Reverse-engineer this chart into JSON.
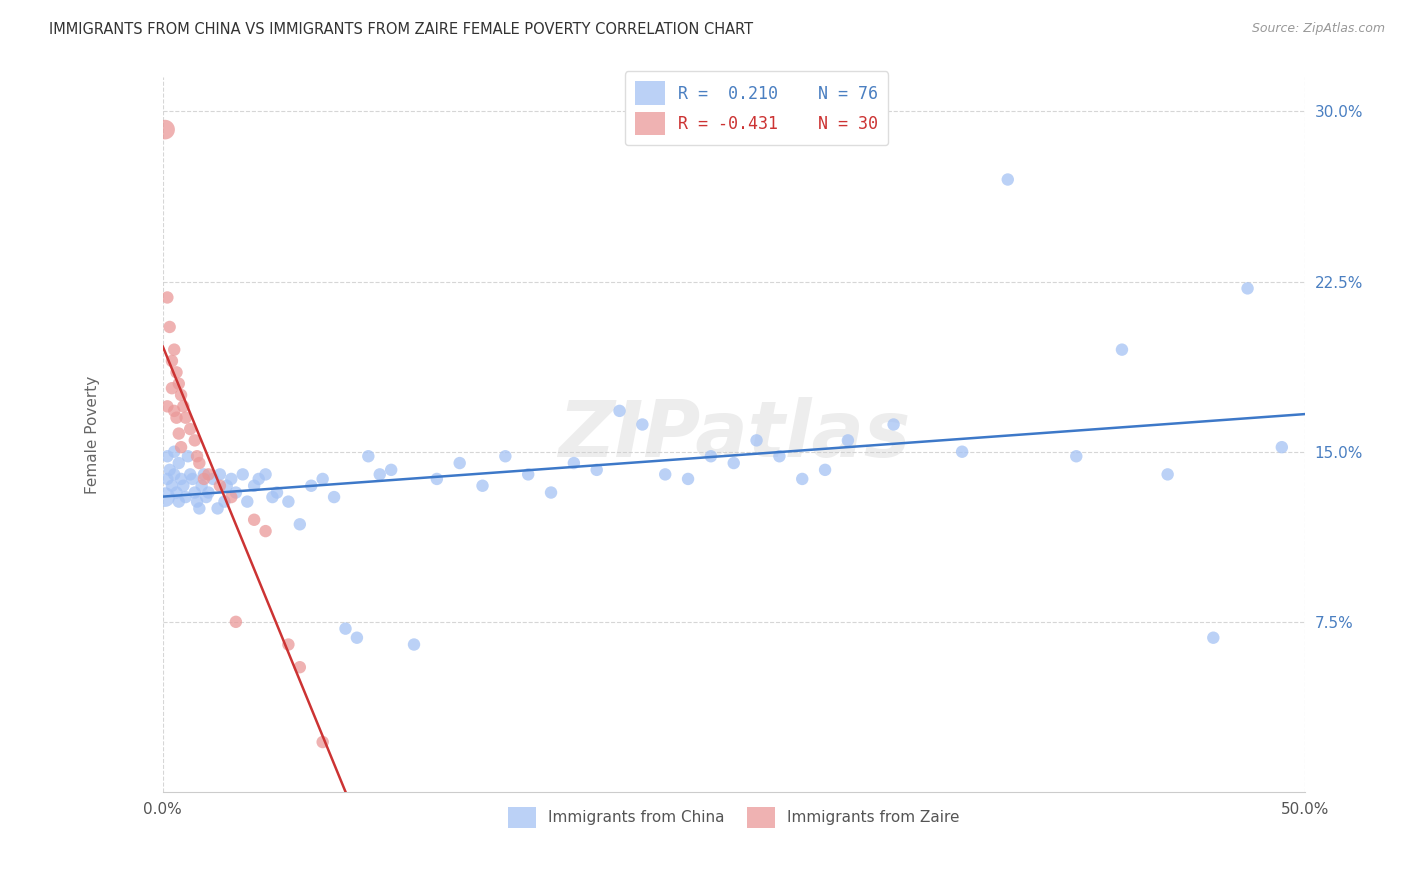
{
  "title": "IMMIGRANTS FROM CHINA VS IMMIGRANTS FROM ZAIRE FEMALE POVERTY CORRELATION CHART",
  "source": "Source: ZipAtlas.com",
  "ylabel": "Female Poverty",
  "xlim": [
    0.0,
    0.5
  ],
  "ylim": [
    0.0,
    0.315
  ],
  "ytick_labels": [
    "7.5%",
    "15.0%",
    "22.5%",
    "30.0%"
  ],
  "ytick_values": [
    0.075,
    0.15,
    0.225,
    0.3
  ],
  "xtick_positions": [
    0.0,
    0.5
  ],
  "xtick_labels": [
    "0.0%",
    "50.0%"
  ],
  "blue_color": "#a4c2f4",
  "pink_color": "#ea9999",
  "trendline_blue": "#3d78c8",
  "trendline_pink": "#cc3333",
  "watermark_text": "ZIPatlas",
  "china_x": [
    0.001,
    0.002,
    0.002,
    0.003,
    0.004,
    0.005,
    0.005,
    0.006,
    0.007,
    0.007,
    0.008,
    0.009,
    0.01,
    0.011,
    0.012,
    0.013,
    0.014,
    0.015,
    0.016,
    0.017,
    0.018,
    0.019,
    0.02,
    0.022,
    0.024,
    0.025,
    0.027,
    0.028,
    0.03,
    0.032,
    0.035,
    0.037,
    0.04,
    0.042,
    0.045,
    0.048,
    0.05,
    0.055,
    0.06,
    0.065,
    0.07,
    0.075,
    0.08,
    0.085,
    0.09,
    0.095,
    0.1,
    0.11,
    0.12,
    0.13,
    0.14,
    0.15,
    0.16,
    0.17,
    0.18,
    0.19,
    0.2,
    0.21,
    0.22,
    0.23,
    0.24,
    0.25,
    0.26,
    0.27,
    0.28,
    0.29,
    0.3,
    0.32,
    0.35,
    0.37,
    0.4,
    0.42,
    0.44,
    0.46,
    0.475,
    0.49
  ],
  "china_y": [
    0.13,
    0.148,
    0.138,
    0.142,
    0.135,
    0.15,
    0.14,
    0.132,
    0.145,
    0.128,
    0.138,
    0.135,
    0.13,
    0.148,
    0.14,
    0.138,
    0.132,
    0.128,
    0.125,
    0.135,
    0.14,
    0.13,
    0.132,
    0.138,
    0.125,
    0.14,
    0.128,
    0.135,
    0.138,
    0.132,
    0.14,
    0.128,
    0.135,
    0.138,
    0.14,
    0.13,
    0.132,
    0.128,
    0.118,
    0.135,
    0.138,
    0.13,
    0.072,
    0.068,
    0.148,
    0.14,
    0.142,
    0.065,
    0.138,
    0.145,
    0.135,
    0.148,
    0.14,
    0.132,
    0.145,
    0.142,
    0.168,
    0.162,
    0.14,
    0.138,
    0.148,
    0.145,
    0.155,
    0.148,
    0.138,
    0.142,
    0.155,
    0.162,
    0.15,
    0.27,
    0.148,
    0.195,
    0.14,
    0.068,
    0.222,
    0.152
  ],
  "china_sizes": [
    200,
    80,
    80,
    80,
    80,
    80,
    80,
    80,
    80,
    80,
    80,
    80,
    80,
    80,
    80,
    80,
    80,
    80,
    80,
    80,
    80,
    80,
    80,
    80,
    80,
    80,
    80,
    80,
    80,
    80,
    80,
    80,
    80,
    80,
    80,
    80,
    80,
    80,
    80,
    80,
    80,
    80,
    80,
    80,
    80,
    80,
    80,
    80,
    80,
    80,
    80,
    80,
    80,
    80,
    80,
    80,
    80,
    80,
    80,
    80,
    80,
    80,
    80,
    80,
    80,
    80,
    80,
    80,
    80,
    80,
    80,
    80,
    80,
    80,
    80,
    80
  ],
  "zaire_x": [
    0.001,
    0.002,
    0.002,
    0.003,
    0.004,
    0.004,
    0.005,
    0.005,
    0.006,
    0.006,
    0.007,
    0.007,
    0.008,
    0.008,
    0.009,
    0.01,
    0.012,
    0.014,
    0.015,
    0.016,
    0.018,
    0.02,
    0.025,
    0.03,
    0.032,
    0.04,
    0.045,
    0.055,
    0.06,
    0.07
  ],
  "zaire_y": [
    0.292,
    0.218,
    0.17,
    0.205,
    0.19,
    0.178,
    0.195,
    0.168,
    0.185,
    0.165,
    0.18,
    0.158,
    0.175,
    0.152,
    0.17,
    0.165,
    0.16,
    0.155,
    0.148,
    0.145,
    0.138,
    0.14,
    0.135,
    0.13,
    0.075,
    0.12,
    0.115,
    0.065,
    0.055,
    0.022
  ],
  "zaire_sizes": [
    200,
    80,
    80,
    80,
    80,
    80,
    80,
    80,
    80,
    80,
    80,
    80,
    80,
    80,
    80,
    80,
    80,
    80,
    80,
    80,
    80,
    80,
    80,
    80,
    80,
    80,
    80,
    80,
    80,
    80
  ]
}
